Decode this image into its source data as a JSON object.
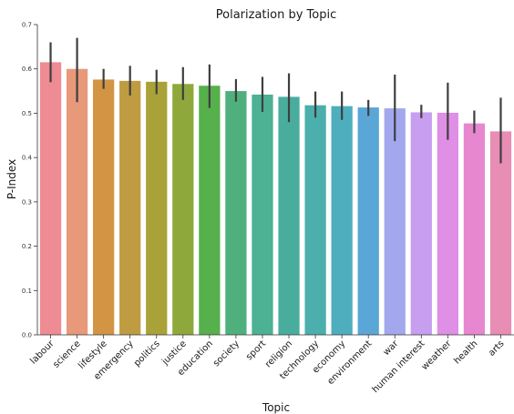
{
  "chart_data": {
    "type": "bar",
    "title": "Polarization by Topic",
    "xlabel": "Topic",
    "ylabel": "P-Index",
    "ylim": [
      0,
      0.7
    ],
    "yticks": [
      "0.0",
      "0.1",
      "0.2",
      "0.3",
      "0.4",
      "0.5",
      "0.6",
      "0.7"
    ],
    "grid": false,
    "legend": "none",
    "categories": [
      "labour",
      "science",
      "lifestyle",
      "emergency",
      "politics",
      "justice",
      "education",
      "society",
      "sport",
      "religion",
      "technology",
      "economy",
      "environment",
      "war",
      "human interest",
      "weather",
      "health",
      "arts"
    ],
    "values": [
      0.615,
      0.6,
      0.576,
      0.573,
      0.571,
      0.566,
      0.562,
      0.55,
      0.542,
      0.537,
      0.518,
      0.516,
      0.513,
      0.511,
      0.502,
      0.501,
      0.477,
      0.459
    ],
    "error_low": [
      0.57,
      0.525,
      0.555,
      0.54,
      0.543,
      0.53,
      0.512,
      0.526,
      0.503,
      0.48,
      0.49,
      0.485,
      0.494,
      0.437,
      0.489,
      0.44,
      0.455,
      0.387
    ],
    "error_high": [
      0.66,
      0.67,
      0.6,
      0.607,
      0.598,
      0.604,
      0.61,
      0.577,
      0.582,
      0.59,
      0.549,
      0.549,
      0.53,
      0.587,
      0.519,
      0.569,
      0.506,
      0.535
    ],
    "colors": [
      "#ee8b93",
      "#e8997a",
      "#d39444",
      "#bf9c42",
      "#a9a238",
      "#8fa83b",
      "#56b04b",
      "#4fb07d",
      "#4db193",
      "#49ad9e",
      "#4aafad",
      "#4eaebd",
      "#5aa6d7",
      "#a3a8ee",
      "#c79ef0",
      "#df8fe6",
      "#e787d0",
      "#e88db4"
    ]
  }
}
